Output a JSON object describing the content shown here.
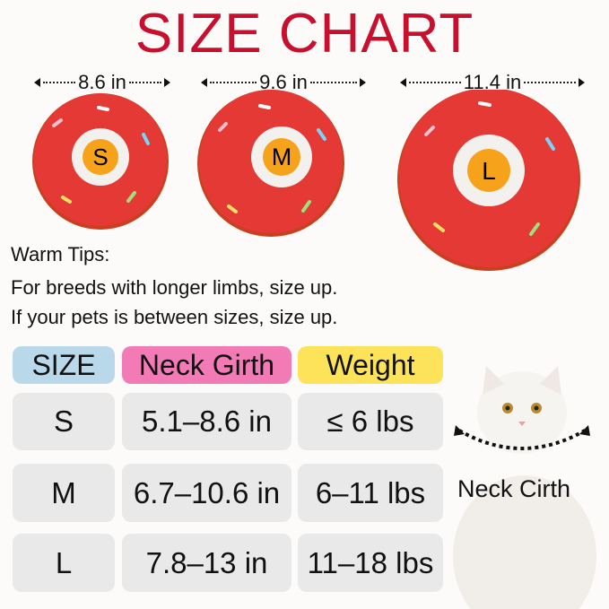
{
  "title": "SIZE CHART",
  "colors": {
    "title": "#c8102e",
    "donut": "#e53935",
    "size_header": "#b9d9ea",
    "girth_header": "#f27bb5",
    "weight_header": "#fde35a",
    "row": "#e9e9e9"
  },
  "donuts": [
    {
      "size": "S",
      "width": "8.6 in"
    },
    {
      "size": "M",
      "width": "9.6 in"
    },
    {
      "size": "L",
      "width": "11.4 in"
    }
  ],
  "tips": {
    "heading": "Warm Tips:",
    "lines": [
      "For breeds with longer limbs, size up.",
      "If your pets is between sizes, size up."
    ]
  },
  "table": {
    "headers": [
      "SIZE",
      "Neck Girth",
      "Weight"
    ],
    "rows": [
      [
        "S",
        "5.1–8.6 in",
        "≤ 6 lbs"
      ],
      [
        "M",
        "6.7–10.6 in",
        "6–11 lbs"
      ],
      [
        "L",
        "7.8–13 in",
        "11–18 lbs"
      ]
    ]
  },
  "cat_label": "Neck Cirth"
}
